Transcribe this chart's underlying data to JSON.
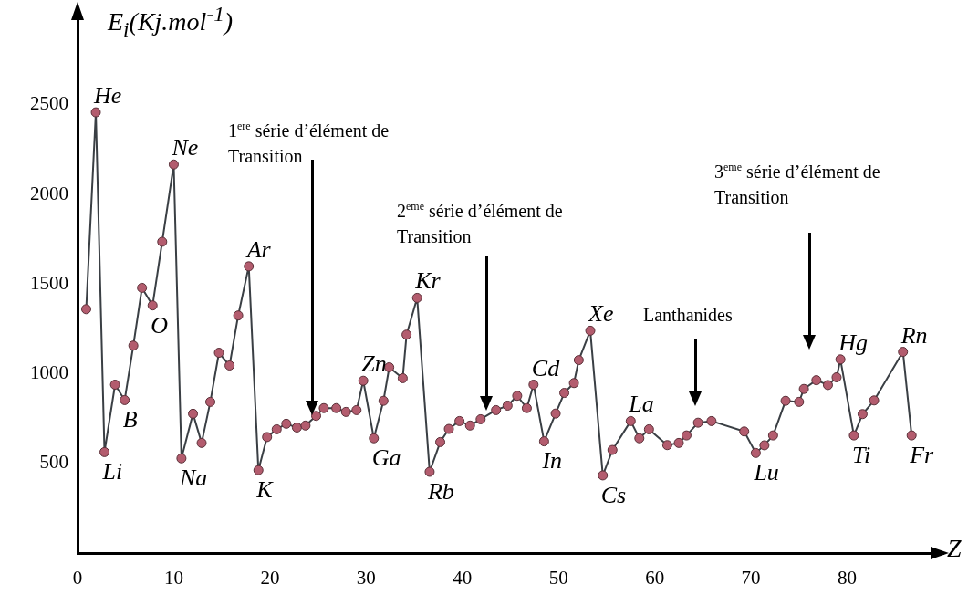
{
  "chart_data": {
    "type": "line",
    "xlabel": "Z",
    "ylabel": "E$_{i}$(Kj.mol$^{-1}$)",
    "series": [
      {
        "color": "#b35c6e",
        "x": [
          0.9,
          1.9,
          2.8,
          3.9,
          4.9,
          5.8,
          6.7,
          7.8,
          8.8,
          10.0,
          10.8,
          12.0,
          12.9,
          13.8,
          14.7,
          15.8,
          16.7,
          17.8,
          18.8,
          19.7,
          20.7,
          21.7,
          22.8,
          23.7,
          24.8,
          25.6,
          26.9,
          27.9,
          29.0,
          29.7,
          30.8,
          31.8,
          32.4,
          33.8,
          34.2,
          35.3,
          36.6,
          37.7,
          38.6,
          39.7,
          40.8,
          41.9,
          43.5,
          44.7,
          45.7,
          46.7,
          47.4,
          48.5,
          49.7,
          50.6,
          51.6,
          52.1,
          53.3,
          54.6,
          55.6,
          57.5,
          58.4,
          59.4,
          61.3,
          62.5,
          63.3,
          64.5,
          65.9,
          69.3,
          70.5,
          71.4,
          72.3,
          73.6,
          75.0,
          75.5,
          76.8,
          78.0,
          78.9,
          79.3,
          80.7,
          81.6,
          82.8,
          85.8,
          86.7
        ],
        "values": [
          1360,
          2458,
          563,
          939,
          853,
          1157,
          1479,
          1381,
          1736,
          2167,
          528,
          777,
          614,
          843,
          1117,
          1046,
          1325,
          1599,
          462,
          647,
          690,
          721,
          700,
          711,
          765,
          808,
          808,
          787,
          797,
          961,
          640,
          849,
          1036,
          975,
          1218,
          1423,
          453,
          619,
          692,
          736,
          711,
          746,
          797,
          822,
          877,
          808,
          939,
          623,
          778,
          893,
          948,
          1076,
          1240,
          433,
          575,
          736,
          640,
          690,
          602,
          614,
          656,
          727,
          736,
          678,
          558,
          601,
          656,
          849,
          843,
          915,
          964,
          937,
          980,
          1080,
          656,
          775,
          851,
          1122,
          656
        ]
      }
    ],
    "marker": "circle",
    "line_style": "solid",
    "grid": false,
    "legend": false,
    "xlim": [
      0,
      90
    ],
    "xticks": [
      0,
      10,
      20,
      30,
      40,
      50,
      60,
      70,
      80
    ],
    "ylim": [
      0,
      3000
    ],
    "yticks": [
      500,
      1000,
      1500,
      2000,
      2500
    ],
    "annotations": [
      {
        "text": "He",
        "x": 1.9,
        "y": 2458
      },
      {
        "text": "Li",
        "x": 2.8,
        "y": 563
      },
      {
        "text": "B",
        "x": 4.9,
        "y": 853
      },
      {
        "text": "O",
        "x": 7.8,
        "y": 1381
      },
      {
        "text": "Ne",
        "x": 10.0,
        "y": 2167
      },
      {
        "text": "Na",
        "x": 10.8,
        "y": 528
      },
      {
        "text": "Ar",
        "x": 17.8,
        "y": 1599
      },
      {
        "text": "K",
        "x": 18.8,
        "y": 462
      },
      {
        "text": "Zn",
        "x": 29.7,
        "y": 961
      },
      {
        "text": "Ga",
        "x": 30.8,
        "y": 640
      },
      {
        "text": "Kr",
        "x": 35.3,
        "y": 1423
      },
      {
        "text": "Rb",
        "x": 36.6,
        "y": 453
      },
      {
        "text": "Cd",
        "x": 47.4,
        "y": 939
      },
      {
        "text": "In",
        "x": 48.5,
        "y": 623
      },
      {
        "text": "Xe",
        "x": 53.3,
        "y": 1240
      },
      {
        "text": "Cs",
        "x": 54.6,
        "y": 433
      },
      {
        "text": "La",
        "x": 57.5,
        "y": 736
      },
      {
        "text": "Lu",
        "x": 70.5,
        "y": 558
      },
      {
        "text": "Hg",
        "x": 79.3,
        "y": 1080
      },
      {
        "text": "Ti",
        "x": 80.7,
        "y": 656
      },
      {
        "text": "Rn",
        "x": 85.8,
        "y": 1122
      },
      {
        "text": "Fr",
        "x": 86.7,
        "y": 656
      },
      "1$^{ere}$ série d’élément de Transition",
      "2$^{eme}$ série d’élément de Transition",
      "Lanthanides",
      "3$^{eme}$ série d’élément de Transition"
    ]
  }
}
